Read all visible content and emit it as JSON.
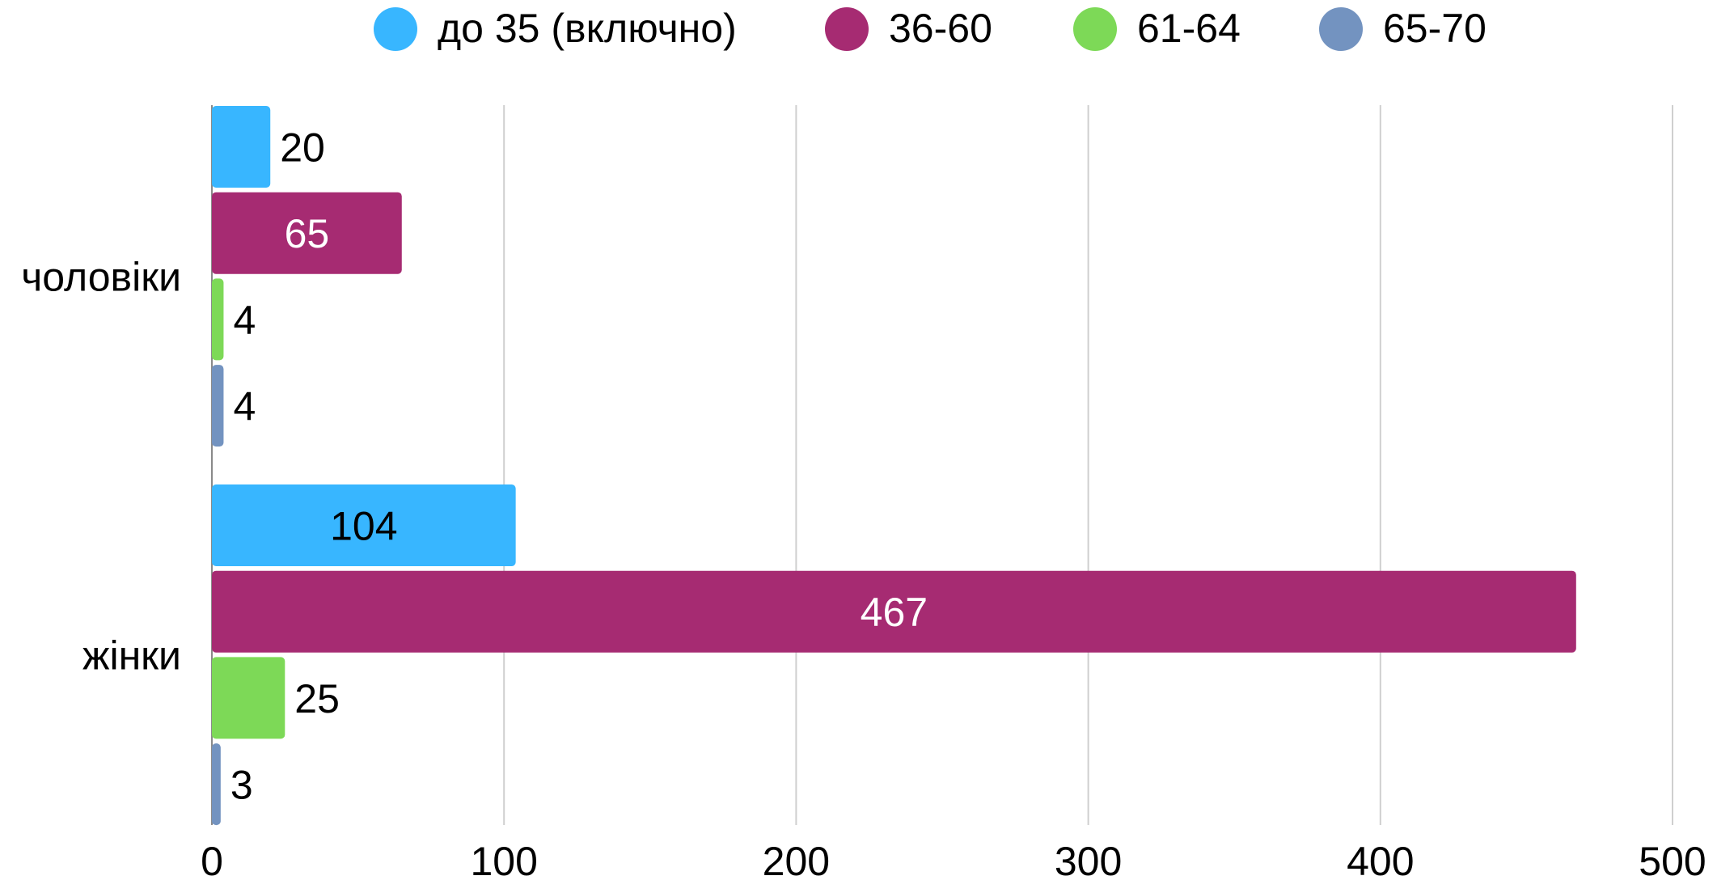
{
  "chart_data": {
    "type": "bar",
    "orientation": "horizontal",
    "title": "",
    "xlabel": "",
    "ylabel": "",
    "categories": [
      "чоловіки",
      "жінки"
    ],
    "series": [
      {
        "name": "до 35 (включно)",
        "color": "#38b6ff",
        "values": [
          20,
          104
        ],
        "label_colors": [
          "#000000",
          "#000000"
        ]
      },
      {
        "name": "36-60",
        "color": "#a62b72",
        "values": [
          65,
          467
        ],
        "label_colors": [
          "#ffffff",
          "#ffffff"
        ]
      },
      {
        "name": "61-64",
        "color": "#7dd957",
        "values": [
          4,
          25
        ],
        "label_colors": [
          "#000000",
          "#000000"
        ]
      },
      {
        "name": "65-70",
        "color": "#7393c0",
        "values": [
          4,
          3
        ],
        "label_colors": [
          "#000000",
          "#000000"
        ]
      }
    ],
    "xlim": [
      0,
      500
    ],
    "x_ticks": [
      0,
      100,
      200,
      300,
      400,
      500
    ],
    "x_tick_labels": [
      "0",
      "100",
      "200",
      "300",
      "400",
      "500"
    ],
    "grid": true,
    "legend_position": "top"
  }
}
